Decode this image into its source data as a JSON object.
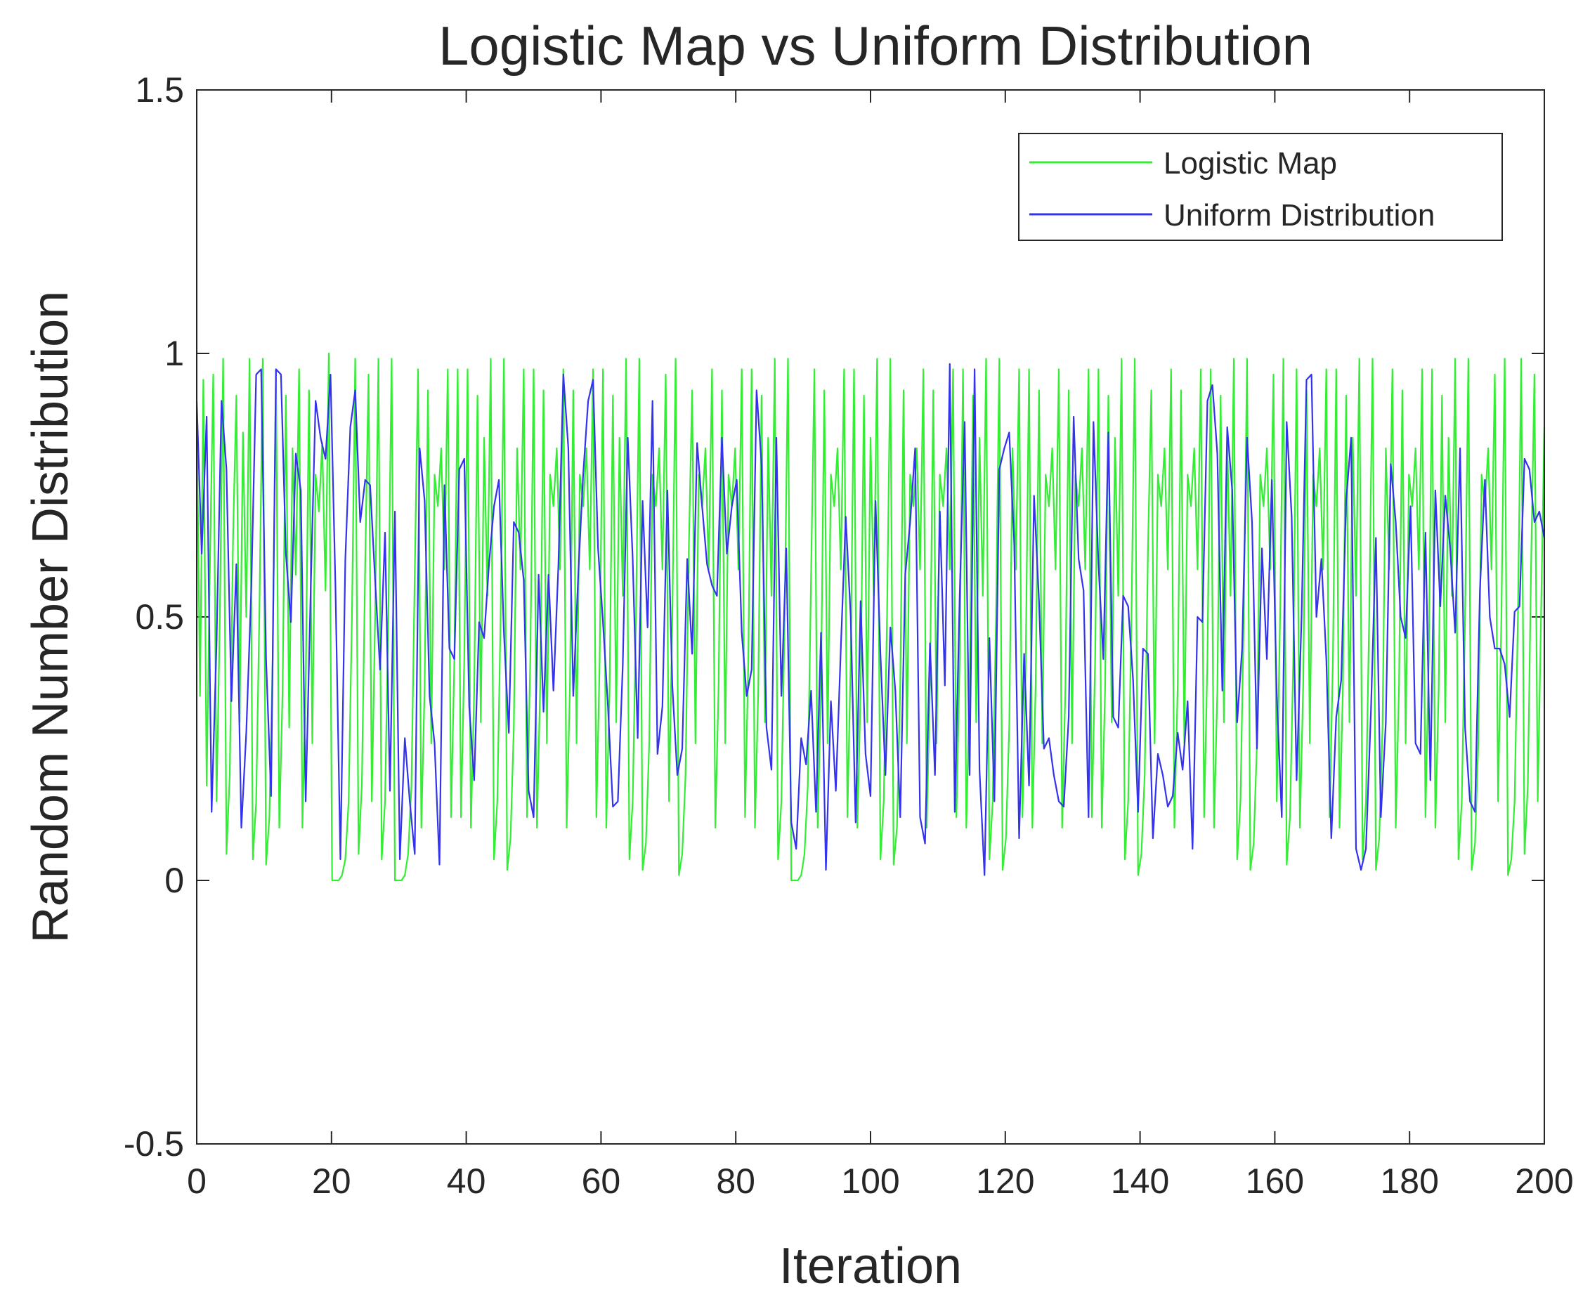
{
  "chart_data": {
    "type": "line",
    "title": "Logistic Map vs Uniform Distribution",
    "xlabel": "Iteration",
    "ylabel": "Random Number Distribution",
    "xlim": [
      0,
      200
    ],
    "ylim": [
      -0.5,
      1.5
    ],
    "xticks": [
      0,
      20,
      40,
      60,
      80,
      100,
      120,
      140,
      160,
      180,
      200
    ],
    "xtick_labels": [
      "0",
      "20",
      "40",
      "60",
      "80",
      "100",
      "120",
      "140",
      "160",
      "180",
      "200"
    ],
    "yticks": [
      -0.5,
      0,
      0.5,
      1,
      1.5
    ],
    "ytick_labels": [
      "-0.5",
      "0",
      "0.5",
      "1",
      "1.5"
    ],
    "grid": false,
    "legend_position": "top-right",
    "series": [
      {
        "name": "Logistic Map",
        "color": "#33ee33",
        "values": [
          0.9,
          0.35,
          0.95,
          0.18,
          0.6,
          0.96,
          0.15,
          0.5,
          0.99,
          0.05,
          0.2,
          0.65,
          0.92,
          0.3,
          0.85,
          0.5,
          0.99,
          0.04,
          0.15,
          0.52,
          0.99,
          0.03,
          0.12,
          0.42,
          0.97,
          0.1,
          0.36,
          0.92,
          0.29,
          0.82,
          0.58,
          0.97,
          0.1,
          0.37,
          0.93,
          0.26,
          0.77,
          0.7,
          0.83,
          0.55,
          1.0,
          0.0,
          0.0,
          0.0,
          0.01,
          0.04,
          0.15,
          0.5,
          0.99,
          0.05,
          0.18,
          0.6,
          0.96,
          0.15,
          0.5,
          0.99,
          0.04,
          0.15,
          0.5,
          0.99,
          0.0,
          0.0,
          0.0,
          0.01,
          0.05,
          0.18,
          0.58,
          0.97,
          0.1,
          0.37,
          0.93,
          0.26,
          0.77,
          0.71,
          0.82,
          0.59,
          0.97,
          0.12,
          0.42,
          0.97,
          0.12,
          0.42,
          0.97,
          0.1,
          0.36,
          0.92,
          0.3,
          0.84,
          0.54,
          0.99,
          0.04,
          0.15,
          0.5,
          0.99,
          0.02,
          0.08,
          0.29,
          0.82,
          0.59,
          0.97,
          0.12,
          0.42,
          0.97,
          0.1,
          0.37,
          0.93,
          0.26,
          0.77,
          0.71,
          0.82,
          0.59,
          0.97,
          0.1,
          0.37,
          0.93,
          0.26,
          0.77,
          0.71,
          0.82,
          0.59,
          0.97,
          0.12,
          0.42,
          0.97,
          0.1,
          0.36,
          0.92,
          0.3,
          0.84,
          0.54,
          0.99,
          0.04,
          0.15,
          0.5,
          0.99,
          0.02,
          0.07,
          0.26,
          0.77,
          0.71,
          0.82,
          0.59,
          0.96,
          0.15,
          0.5,
          0.99,
          0.01,
          0.05,
          0.2,
          0.63,
          0.93,
          0.26,
          0.77,
          0.71,
          0.82,
          0.59,
          0.97,
          0.1,
          0.37,
          0.93,
          0.26,
          0.77,
          0.71,
          0.82,
          0.59,
          0.97,
          0.12,
          0.42,
          0.97,
          0.1,
          0.36,
          0.92,
          0.3,
          0.84,
          0.54,
          0.99,
          0.04,
          0.15,
          0.5,
          0.99,
          0.0,
          0.0,
          0.0,
          0.01,
          0.05,
          0.18,
          0.58,
          0.97,
          0.1,
          0.37,
          0.93,
          0.26,
          0.77,
          0.71,
          0.82,
          0.59,
          0.97,
          0.12,
          0.42,
          0.97,
          0.1,
          0.36,
          0.92,
          0.3,
          0.84,
          0.54,
          0.99,
          0.04,
          0.15,
          0.5,
          0.99,
          0.03,
          0.1,
          0.37,
          0.93,
          0.26,
          0.77,
          0.71,
          0.82,
          0.59,
          0.97,
          0.1,
          0.37,
          0.93,
          0.26,
          0.77,
          0.71,
          0.82,
          0.59,
          0.97,
          0.12,
          0.42,
          0.97,
          0.1,
          0.36,
          0.92,
          0.3,
          0.84,
          0.54,
          0.99,
          0.04,
          0.15,
          0.5,
          0.99,
          0.02,
          0.08,
          0.29,
          0.82,
          0.59,
          0.97,
          0.12,
          0.42,
          0.97,
          0.1,
          0.37,
          0.93,
          0.26,
          0.77,
          0.71,
          0.82,
          0.59,
          0.97,
          0.1,
          0.37,
          0.93,
          0.26,
          0.77,
          0.71,
          0.82,
          0.59,
          0.97,
          0.12,
          0.42,
          0.97,
          0.1,
          0.36,
          0.92,
          0.3,
          0.84,
          0.54,
          0.99,
          0.04,
          0.15,
          0.5,
          0.99,
          0.01,
          0.05,
          0.2,
          0.63,
          0.93,
          0.26,
          0.77,
          0.71,
          0.82,
          0.59,
          0.97,
          0.1,
          0.37,
          0.93,
          0.26,
          0.77,
          0.71,
          0.82,
          0.59,
          0.97,
          0.12,
          0.42,
          0.97,
          0.1,
          0.36,
          0.92,
          0.3,
          0.84,
          0.54,
          0.99,
          0.04,
          0.15,
          0.5,
          0.99,
          0.02,
          0.07,
          0.26,
          0.77,
          0.71,
          0.82,
          0.59,
          0.96,
          0.15,
          0.5,
          0.99,
          0.03,
          0.12,
          0.42,
          0.97,
          0.1,
          0.37,
          0.93,
          0.26,
          0.77,
          0.71,
          0.82,
          0.59,
          0.97,
          0.12,
          0.42,
          0.97,
          0.1,
          0.36,
          0.92,
          0.3,
          0.84,
          0.54,
          0.99,
          0.04,
          0.15,
          0.5,
          0.99,
          0.02,
          0.08,
          0.29,
          0.82,
          0.59,
          0.97,
          0.1,
          0.37,
          0.93,
          0.26,
          0.77,
          0.71,
          0.82,
          0.59,
          0.97,
          0.12,
          0.42,
          0.97,
          0.1,
          0.36,
          0.92,
          0.3,
          0.84,
          0.54,
          0.99,
          0.04,
          0.15,
          0.5,
          0.99,
          0.02,
          0.07,
          0.26,
          0.77,
          0.71,
          0.82,
          0.59,
          0.96,
          0.15,
          0.5,
          0.99,
          0.01,
          0.04,
          0.15,
          0.5,
          0.99,
          0.05,
          0.18,
          0.6,
          0.96,
          0.15,
          0.5,
          0.86
        ]
      },
      {
        "name": "Uniform Distribution",
        "color": "#3333ee",
        "values": [
          0.91,
          0.62,
          0.88,
          0.13,
          0.45,
          0.91,
          0.78,
          0.34,
          0.6,
          0.1,
          0.28,
          0.55,
          0.96,
          0.97,
          0.42,
          0.16,
          0.97,
          0.96,
          0.62,
          0.49,
          0.81,
          0.74,
          0.15,
          0.55,
          0.91,
          0.84,
          0.8,
          0.96,
          0.56,
          0.04,
          0.61,
          0.86,
          0.93,
          0.68,
          0.76,
          0.75,
          0.57,
          0.4,
          0.66,
          0.17,
          0.7,
          0.04,
          0.27,
          0.15,
          0.05,
          0.82,
          0.72,
          0.35,
          0.26,
          0.03,
          0.75,
          0.44,
          0.42,
          0.78,
          0.8,
          0.33,
          0.19,
          0.49,
          0.46,
          0.6,
          0.71,
          0.76,
          0.47,
          0.28,
          0.68,
          0.66,
          0.57,
          0.17,
          0.12,
          0.58,
          0.32,
          0.58,
          0.36,
          0.6,
          0.96,
          0.82,
          0.35,
          0.58,
          0.77,
          0.91,
          0.95,
          0.63,
          0.49,
          0.33,
          0.14,
          0.15,
          0.41,
          0.84,
          0.61,
          0.27,
          0.72,
          0.48,
          0.91,
          0.24,
          0.33,
          0.74,
          0.37,
          0.2,
          0.25,
          0.61,
          0.43,
          0.83,
          0.71,
          0.6,
          0.56,
          0.54,
          0.84,
          0.62,
          0.71,
          0.76,
          0.47,
          0.35,
          0.4,
          0.93,
          0.79,
          0.29,
          0.21,
          0.84,
          0.35,
          0.63,
          0.11,
          0.06,
          0.27,
          0.22,
          0.36,
          0.13,
          0.47,
          0.02,
          0.34,
          0.17,
          0.44,
          0.69,
          0.5,
          0.11,
          0.53,
          0.24,
          0.16,
          0.72,
          0.43,
          0.2,
          0.48,
          0.36,
          0.12,
          0.58,
          0.68,
          0.82,
          0.12,
          0.07,
          0.45,
          0.2,
          0.7,
          0.37,
          0.98,
          0.13,
          0.54,
          0.87,
          0.2,
          0.97,
          0.21,
          0.01,
          0.46,
          0.15,
          0.78,
          0.82,
          0.85,
          0.64,
          0.08,
          0.43,
          0.18,
          0.73,
          0.53,
          0.25,
          0.27,
          0.2,
          0.15,
          0.14,
          0.31,
          0.88,
          0.61,
          0.55,
          0.12,
          0.87,
          0.6,
          0.42,
          0.85,
          0.31,
          0.29,
          0.54,
          0.52,
          0.38,
          0.13,
          0.44,
          0.43,
          0.08,
          0.24,
          0.2,
          0.14,
          0.16,
          0.28,
          0.21,
          0.34,
          0.06,
          0.5,
          0.49,
          0.91,
          0.94,
          0.81,
          0.36,
          0.86,
          0.74,
          0.3,
          0.44,
          0.84,
          0.68,
          0.25,
          0.63,
          0.42,
          0.76,
          0.35,
          0.12,
          0.87,
          0.69,
          0.19,
          0.5,
          0.95,
          0.96,
          0.5,
          0.61,
          0.42,
          0.08,
          0.31,
          0.38,
          0.72,
          0.84,
          0.06,
          0.02,
          0.06,
          0.32,
          0.65,
          0.12,
          0.3,
          0.79,
          0.68,
          0.5,
          0.46,
          0.71,
          0.26,
          0.24,
          0.66,
          0.19,
          0.74,
          0.52,
          0.73,
          0.63,
          0.47,
          0.82,
          0.29,
          0.15,
          0.13,
          0.55,
          0.76,
          0.5,
          0.44,
          0.44,
          0.41,
          0.31,
          0.51,
          0.52,
          0.8,
          0.78,
          0.68,
          0.7,
          0.65
        ]
      }
    ]
  }
}
